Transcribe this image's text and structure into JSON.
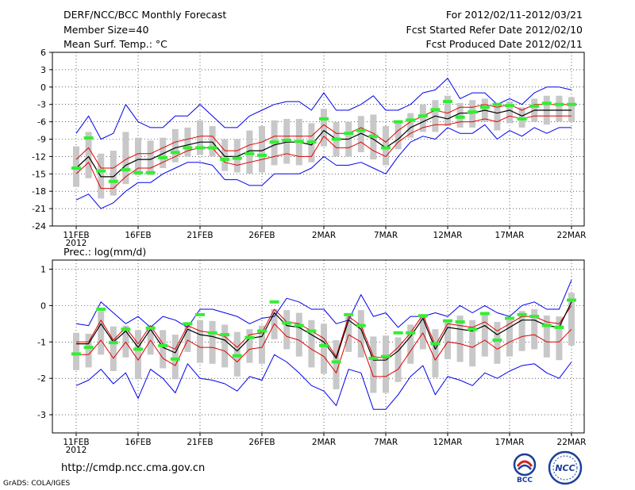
{
  "header": {
    "left": [
      "DERF/NCC/BCC Monthly Forecast",
      "Member Size=40",
      "Mean Surf. Temp.: °C"
    ],
    "right": [
      "For 2012/02/11-2012/03/21",
      "Fcst Started Refer Date 2012/02/10",
      "Fcst Produced Date 2012/02/11"
    ]
  },
  "footer": {
    "url": "http://cmdp.ncc.cma.gov.cn",
    "credit": "GrADS: COLA/IGES",
    "logo_left_text": "BCC",
    "logo_right_text": "NCC"
  },
  "colors": {
    "envelope": "#0000ee",
    "quartile": "#e00000",
    "mean": "#000000",
    "box": "#c8c8c8",
    "obs": "#33ee33",
    "grid": "#000000"
  },
  "chart_data": [
    {
      "type": "line",
      "title": "Mean Surf. Temp.: °C",
      "xlabel": "",
      "ylabel": "",
      "ylim": [
        -24,
        6
      ],
      "yticks": [
        -24,
        -21,
        -18,
        -15,
        -12,
        -9,
        -6,
        -3,
        0,
        3,
        6
      ],
      "tick_labels": [
        "11FEB",
        "16FEB",
        "21FEB",
        "26FEB",
        "2MAR",
        "7MAR",
        "12MAR",
        "17MAR",
        "22MAR"
      ],
      "tick_index": [
        0,
        5,
        10,
        15,
        20,
        25,
        30,
        35,
        40
      ],
      "year_label": "2012",
      "series": [
        {
          "name": "max",
          "values": [
            -19.5,
            -18.5,
            -21,
            -20,
            -18,
            -16.5,
            -16.5,
            -15,
            -14,
            -13,
            -13,
            -13.5,
            -16,
            -16,
            -17,
            -17,
            -15,
            -15,
            -15,
            -14,
            -12,
            -13.5,
            -13.5,
            -13,
            -14,
            -15,
            -12,
            -9.5,
            -8.5,
            -9,
            -7,
            -8,
            -8,
            -6.5,
            -9,
            -7.5,
            -8.5,
            -7,
            -8,
            -7,
            -7
          ]
        },
        {
          "name": "p75",
          "values": [
            -15,
            -13,
            -17.5,
            -17.5,
            -15.5,
            -14,
            -14,
            -13,
            -12,
            -11,
            -10.5,
            -10.5,
            -13,
            -13.5,
            -13,
            -12.5,
            -12,
            -11.5,
            -12,
            -12,
            -8.5,
            -10.5,
            -10.5,
            -9.5,
            -11,
            -12,
            -9.5,
            -8,
            -7,
            -6.5,
            -6.5,
            -6,
            -6,
            -5.5,
            -6,
            -5,
            -5.5,
            -5,
            -5,
            -5,
            -5
          ]
        },
        {
          "name": "mean",
          "values": [
            -14,
            -12,
            -15.5,
            -15.5,
            -13.5,
            -12.5,
            -12.5,
            -11.5,
            -10.5,
            -10,
            -9.5,
            -9.5,
            -12,
            -12,
            -11,
            -11,
            -10,
            -9.5,
            -9.5,
            -10,
            -7.5,
            -9,
            -9,
            -8,
            -9,
            -10.5,
            -9,
            -7,
            -6,
            -5,
            -5.5,
            -4.5,
            -4.5,
            -4,
            -4.5,
            -4,
            -5,
            -4,
            -4,
            -4,
            -4
          ]
        },
        {
          "name": "p25",
          "values": [
            -12.5,
            -10.5,
            -14,
            -14,
            -12.5,
            -11.5,
            -11.5,
            -10.5,
            -9.5,
            -9,
            -8.5,
            -8.5,
            -11,
            -11,
            -10,
            -9.5,
            -8.5,
            -8.5,
            -8.5,
            -8.5,
            -6.5,
            -8,
            -8,
            -7,
            -8,
            -9.5,
            -7.5,
            -6,
            -5,
            -4,
            -4.5,
            -3.5,
            -3.5,
            -3,
            -3.5,
            -3,
            -4,
            -3,
            -3,
            -3,
            -3
          ]
        },
        {
          "name": "min",
          "values": [
            -8,
            -5,
            -9,
            -8,
            -3,
            -6,
            -7,
            -7,
            -5,
            -5,
            -3,
            -5,
            -7,
            -7,
            -5,
            -4,
            -3,
            -2.5,
            -2.5,
            -4,
            -1,
            -4,
            -4,
            -3,
            -1.5,
            -4,
            -4,
            -3,
            -1,
            -0.5,
            1.5,
            -2,
            -1,
            -1,
            -3,
            -2,
            -3,
            -1,
            0,
            0,
            -0.5
          ]
        },
        {
          "name": "observed",
          "values": [
            -14,
            -8.8,
            -14.5,
            -16.3,
            -14.3,
            -14.8,
            -14.8,
            -12.2,
            -11.3,
            -10.5,
            -10.5,
            -10.5,
            -12.5,
            -12.3,
            -11.5,
            -11.8,
            -9.5,
            -9.2,
            -9.4,
            -9.5,
            -5.5,
            -9,
            -8,
            -7.5,
            -8.5,
            -10.5,
            -6,
            -5.7,
            -5,
            -3.9,
            -2.5,
            -5.2,
            -4.3,
            -3.5,
            -3,
            -3.2,
            -5.5,
            -3.3,
            -2.8,
            -3,
            -3
          ]
        }
      ]
    },
    {
      "type": "line",
      "title": "Prec.: log(mm/d)",
      "xlabel": "",
      "ylabel": "",
      "ylim": [
        -3.5,
        1.25
      ],
      "yticks": [
        -3,
        -2,
        -1,
        0,
        1
      ],
      "tick_labels": [
        "11FEB",
        "16FEB",
        "21FEB",
        "26FEB",
        "2MAR",
        "7MAR",
        "12MAR",
        "17MAR",
        "22MAR"
      ],
      "tick_index": [
        0,
        5,
        10,
        15,
        20,
        25,
        30,
        35,
        40
      ],
      "year_label": "2012",
      "series": [
        {
          "name": "max",
          "values": [
            -0.5,
            -0.55,
            0.1,
            -0.2,
            -0.5,
            -0.3,
            -0.6,
            -0.3,
            -0.4,
            -0.6,
            -0.1,
            -0.1,
            -0.2,
            -0.3,
            -0.5,
            -0.35,
            -0.3,
            0.2,
            0.1,
            -0.1,
            -0.1,
            -0.5,
            -0.4,
            0.3,
            -0.3,
            -0.2,
            -0.6,
            -0.3,
            -0.3,
            -0.2,
            -0.3,
            0.0,
            -0.2,
            0.0,
            -0.2,
            -0.3,
            0.0,
            0.1,
            -0.1,
            -0.1,
            0.7
          ]
        },
        {
          "name": "p75",
          "values": [
            -1.0,
            -1.0,
            -0.4,
            -0.95,
            -0.6,
            -1.05,
            -0.55,
            -1.05,
            -1.2,
            -0.55,
            -0.7,
            -0.75,
            -0.85,
            -1.15,
            -0.8,
            -0.75,
            -0.1,
            -0.45,
            -0.5,
            -0.7,
            -0.9,
            -1.4,
            -0.3,
            -0.55,
            -1.4,
            -1.45,
            -1.15,
            -0.75,
            -0.25,
            -1.1,
            -0.5,
            -0.55,
            -0.6,
            -0.45,
            -0.7,
            -0.5,
            -0.3,
            -0.3,
            -0.45,
            -0.5,
            0.0
          ]
        },
        {
          "name": "mean",
          "values": [
            -1.05,
            -1.05,
            -0.5,
            -1.0,
            -0.7,
            -1.15,
            -0.65,
            -1.15,
            -1.3,
            -0.65,
            -0.8,
            -0.85,
            -0.95,
            -1.25,
            -0.9,
            -0.85,
            -0.2,
            -0.55,
            -0.6,
            -0.8,
            -1.0,
            -1.45,
            -0.4,
            -0.65,
            -1.5,
            -1.5,
            -1.25,
            -0.85,
            -0.35,
            -1.2,
            -0.6,
            -0.65,
            -0.7,
            -0.55,
            -0.8,
            -0.6,
            -0.4,
            -0.4,
            -0.55,
            -0.6,
            0.1
          ]
        },
        {
          "name": "p25",
          "values": [
            -1.35,
            -1.35,
            -0.95,
            -1.45,
            -1.0,
            -1.5,
            -0.95,
            -1.45,
            -1.65,
            -0.95,
            -1.15,
            -1.15,
            -1.25,
            -1.55,
            -1.2,
            -1.15,
            -0.5,
            -0.85,
            -0.95,
            -1.2,
            -1.4,
            -1.85,
            -0.8,
            -1.0,
            -1.95,
            -1.95,
            -1.75,
            -1.25,
            -0.75,
            -1.5,
            -1.0,
            -1.05,
            -1.15,
            -0.95,
            -1.2,
            -1.0,
            -0.85,
            -0.8,
            -1.0,
            -1.0,
            -0.65
          ]
        },
        {
          "name": "min",
          "values": [
            -2.2,
            -2.05,
            -1.75,
            -2.15,
            -1.85,
            -2.55,
            -1.75,
            -2.0,
            -2.4,
            -1.6,
            -2.0,
            -2.05,
            -2.15,
            -2.35,
            -1.95,
            -2.05,
            -1.35,
            -1.55,
            -1.85,
            -2.2,
            -2.35,
            -2.75,
            -1.75,
            -1.85,
            -2.85,
            -2.85,
            -2.45,
            -1.95,
            -1.65,
            -2.45,
            -1.95,
            -2.05,
            -2.2,
            -1.85,
            -2.0,
            -1.8,
            -1.65,
            -1.6,
            -1.85,
            -2.0,
            -1.55
          ]
        },
        {
          "name": "observed",
          "values": [
            -1.33,
            -1.15,
            -0.1,
            -1.02,
            -0.65,
            -1.2,
            -0.62,
            -1.1,
            -1.47,
            -0.5,
            -0.25,
            -0.75,
            -0.8,
            -1.38,
            -0.88,
            -0.7,
            0.1,
            -0.48,
            -0.55,
            -0.7,
            -1.1,
            -1.55,
            -0.25,
            -0.55,
            -1.45,
            -1.4,
            -0.75,
            -0.75,
            -0.28,
            -1.05,
            -0.42,
            -0.45,
            -0.65,
            -0.22,
            -0.95,
            -0.35,
            -0.25,
            -0.3,
            -0.55,
            -0.6,
            0.15
          ]
        }
      ]
    }
  ]
}
